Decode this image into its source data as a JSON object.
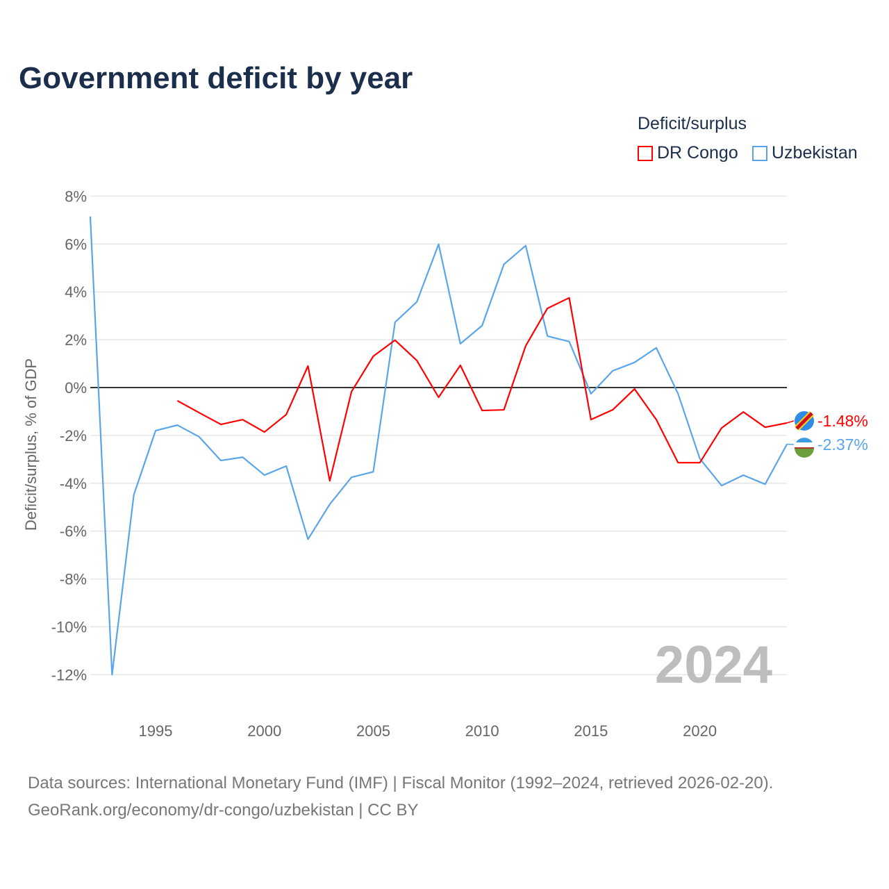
{
  "title": "Government deficit by year",
  "legend": {
    "title": "Deficit/surplus",
    "items": [
      "DR Congo",
      "Uzbekistan"
    ]
  },
  "footer": {
    "line1": "Data sources: International Monetary Fund (IMF) | Fiscal Monitor (1992–2024, retrieved 2026-02-20).",
    "line2": "GeoRank.org/economy/dr-congo/uzbekistan | CC BY"
  },
  "chart_data": {
    "type": "line",
    "title": "Government deficit by year",
    "ylabel": "Deficit/surplus, % of GDP",
    "xlabel": "",
    "xlim": [
      1992,
      2024
    ],
    "ylim": [
      -12,
      8
    ],
    "yticks": [
      8,
      6,
      4,
      2,
      0,
      -2,
      -4,
      -6,
      -8,
      -10,
      -12
    ],
    "ytick_labels": [
      "8%",
      "6%",
      "4%",
      "2%",
      "0%",
      "-2%",
      "-4%",
      "-6%",
      "-8%",
      "-10%",
      "-12%"
    ],
    "xticks": [
      1995,
      2000,
      2005,
      2010,
      2015,
      2020
    ],
    "xtick_labels": [
      "1995",
      "2000",
      "2005",
      "2010",
      "2015",
      "2020"
    ],
    "year_watermark": "2024",
    "series": [
      {
        "name": "DR Congo",
        "color": "#ff0000",
        "end_label": "-1.48%",
        "x": [
          1996,
          1997,
          1998,
          1999,
          2000,
          2001,
          2002,
          2003,
          2004,
          2005,
          2006,
          2007,
          2008,
          2009,
          2010,
          2011,
          2012,
          2013,
          2014,
          2015,
          2016,
          2017,
          2018,
          2019,
          2020,
          2021,
          2022,
          2023,
          2024
        ],
        "values": [
          -0.55,
          -1.05,
          -1.54,
          -1.34,
          -1.86,
          -1.13,
          0.9,
          -3.9,
          -0.17,
          1.31,
          1.98,
          1.13,
          -0.41,
          0.93,
          -0.96,
          -0.93,
          1.74,
          3.31,
          3.75,
          -1.34,
          -0.93,
          -0.06,
          -1.34,
          -3.14,
          -3.14,
          -1.69,
          -1.02,
          -1.66,
          -1.48
        ]
      },
      {
        "name": "Uzbekistan",
        "color": "#5aa5ea",
        "end_label": "-2.37%",
        "x": [
          1992,
          1993,
          1994,
          1995,
          1996,
          1997,
          1998,
          1999,
          2000,
          2001,
          2002,
          2003,
          2004,
          2005,
          2006,
          2007,
          2008,
          2009,
          2010,
          2011,
          2012,
          2013,
          2014,
          2015,
          2016,
          2017,
          2018,
          2019,
          2020,
          2021,
          2022,
          2023,
          2024
        ],
        "values": [
          7.15,
          -12.0,
          -4.48,
          -1.8,
          -1.57,
          -2.06,
          -3.05,
          -2.91,
          -3.66,
          -3.28,
          -6.34,
          -4.88,
          -3.75,
          -3.52,
          2.73,
          3.58,
          5.99,
          1.83,
          2.59,
          5.15,
          5.93,
          2.15,
          1.92,
          -0.26,
          0.7,
          1.05,
          1.66,
          -0.26,
          -2.97,
          -4.1,
          -3.66,
          -4.04,
          -2.37
        ]
      }
    ]
  }
}
